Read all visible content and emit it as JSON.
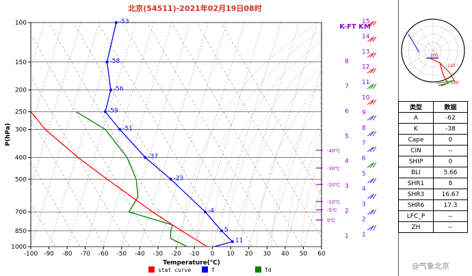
{
  "title": "北京(54511)-2021年02月19日08时",
  "chart_data": {
    "type": "line",
    "title": "北京(54511)-2021年02月19日08时",
    "xlabel": "Temperature(℃)",
    "ylabel": "P(hPa)",
    "xlim": [
      -100,
      60
    ],
    "ylim": [
      1000,
      100
    ],
    "y_scale": "log",
    "x_ticks": [
      "-100",
      "-90",
      "-80",
      "-70",
      "-60",
      "-50",
      "-40",
      "-30",
      "-20",
      "-10",
      "0",
      "10",
      "20",
      "30",
      "40",
      "50",
      "60"
    ],
    "y_ticks": [
      "100",
      "150",
      "200",
      "250",
      "300",
      "400",
      "500",
      "700",
      "850",
      "1000"
    ],
    "height_axis_label": "K-FT KM",
    "km_ticks": [
      "1",
      "2",
      "3",
      "4",
      "5",
      "6",
      "7",
      "8"
    ],
    "kft_ticks": [
      "1",
      "2",
      "3",
      "4",
      "5",
      "6",
      "7",
      "8",
      "9",
      "10",
      "11",
      "12",
      "13",
      "14",
      "15"
    ],
    "freezing_level_labels": [
      "-40℃",
      "-30℃",
      "-20℃",
      "-10℃",
      "-5℃",
      "0℃"
    ],
    "legend": [
      "stat curve",
      "T",
      "Td"
    ],
    "legend_colors": [
      "#ff0000",
      "#0000ff",
      "#008000"
    ],
    "series": [
      {
        "name": "T",
        "color": "#0000ff",
        "points": [
          [
            1000,
            1
          ],
          [
            950,
            11
          ],
          [
            850,
            5
          ],
          [
            700,
            -4
          ],
          [
            500,
            -23
          ],
          [
            400,
            -37
          ],
          [
            300,
            -51
          ],
          [
            250,
            -59
          ],
          [
            200,
            -56
          ],
          [
            150,
            -58
          ],
          [
            100,
            -53
          ]
        ],
        "labels": [
          "11",
          "5",
          "-4",
          "-23",
          "-37",
          "-51",
          "-59",
          "-56",
          "-58",
          "-53"
        ]
      },
      {
        "name": "Td",
        "color": "#008000",
        "points": [
          [
            1000,
            -14
          ],
          [
            920,
            -23
          ],
          [
            850,
            -23
          ],
          [
            800,
            -22
          ],
          [
            700,
            -46
          ],
          [
            600,
            -41
          ],
          [
            500,
            -42
          ],
          [
            400,
            -47
          ],
          [
            300,
            -59
          ],
          [
            250,
            -75
          ]
        ]
      },
      {
        "name": "stat curve",
        "color": "#ff0000",
        "points": [
          [
            1000,
            -3
          ],
          [
            900,
            -12
          ],
          [
            850,
            -17
          ],
          [
            700,
            -33
          ],
          [
            500,
            -58
          ],
          [
            400,
            -74
          ],
          [
            300,
            -92
          ],
          [
            250,
            -100
          ]
        ]
      }
    ]
  },
  "indices": {
    "headers": [
      "类型",
      "数据"
    ],
    "rows": [
      [
        "A",
        "-62"
      ],
      [
        "K",
        "-38"
      ],
      [
        "Cape",
        "0"
      ],
      [
        "CIN",
        "--"
      ],
      [
        "SHIP",
        "0"
      ],
      [
        "BLI",
        "5.66"
      ],
      [
        "SHR1",
        "8"
      ],
      [
        "SHR3",
        "16.67"
      ],
      [
        "SHR6",
        "17.3"
      ],
      [
        "LFC_P",
        "--"
      ],
      [
        "ZH",
        "--"
      ]
    ]
  },
  "hodograph": {
    "labels": [
      "200",
      "120",
      "150"
    ]
  },
  "watermark": "@气象北京"
}
